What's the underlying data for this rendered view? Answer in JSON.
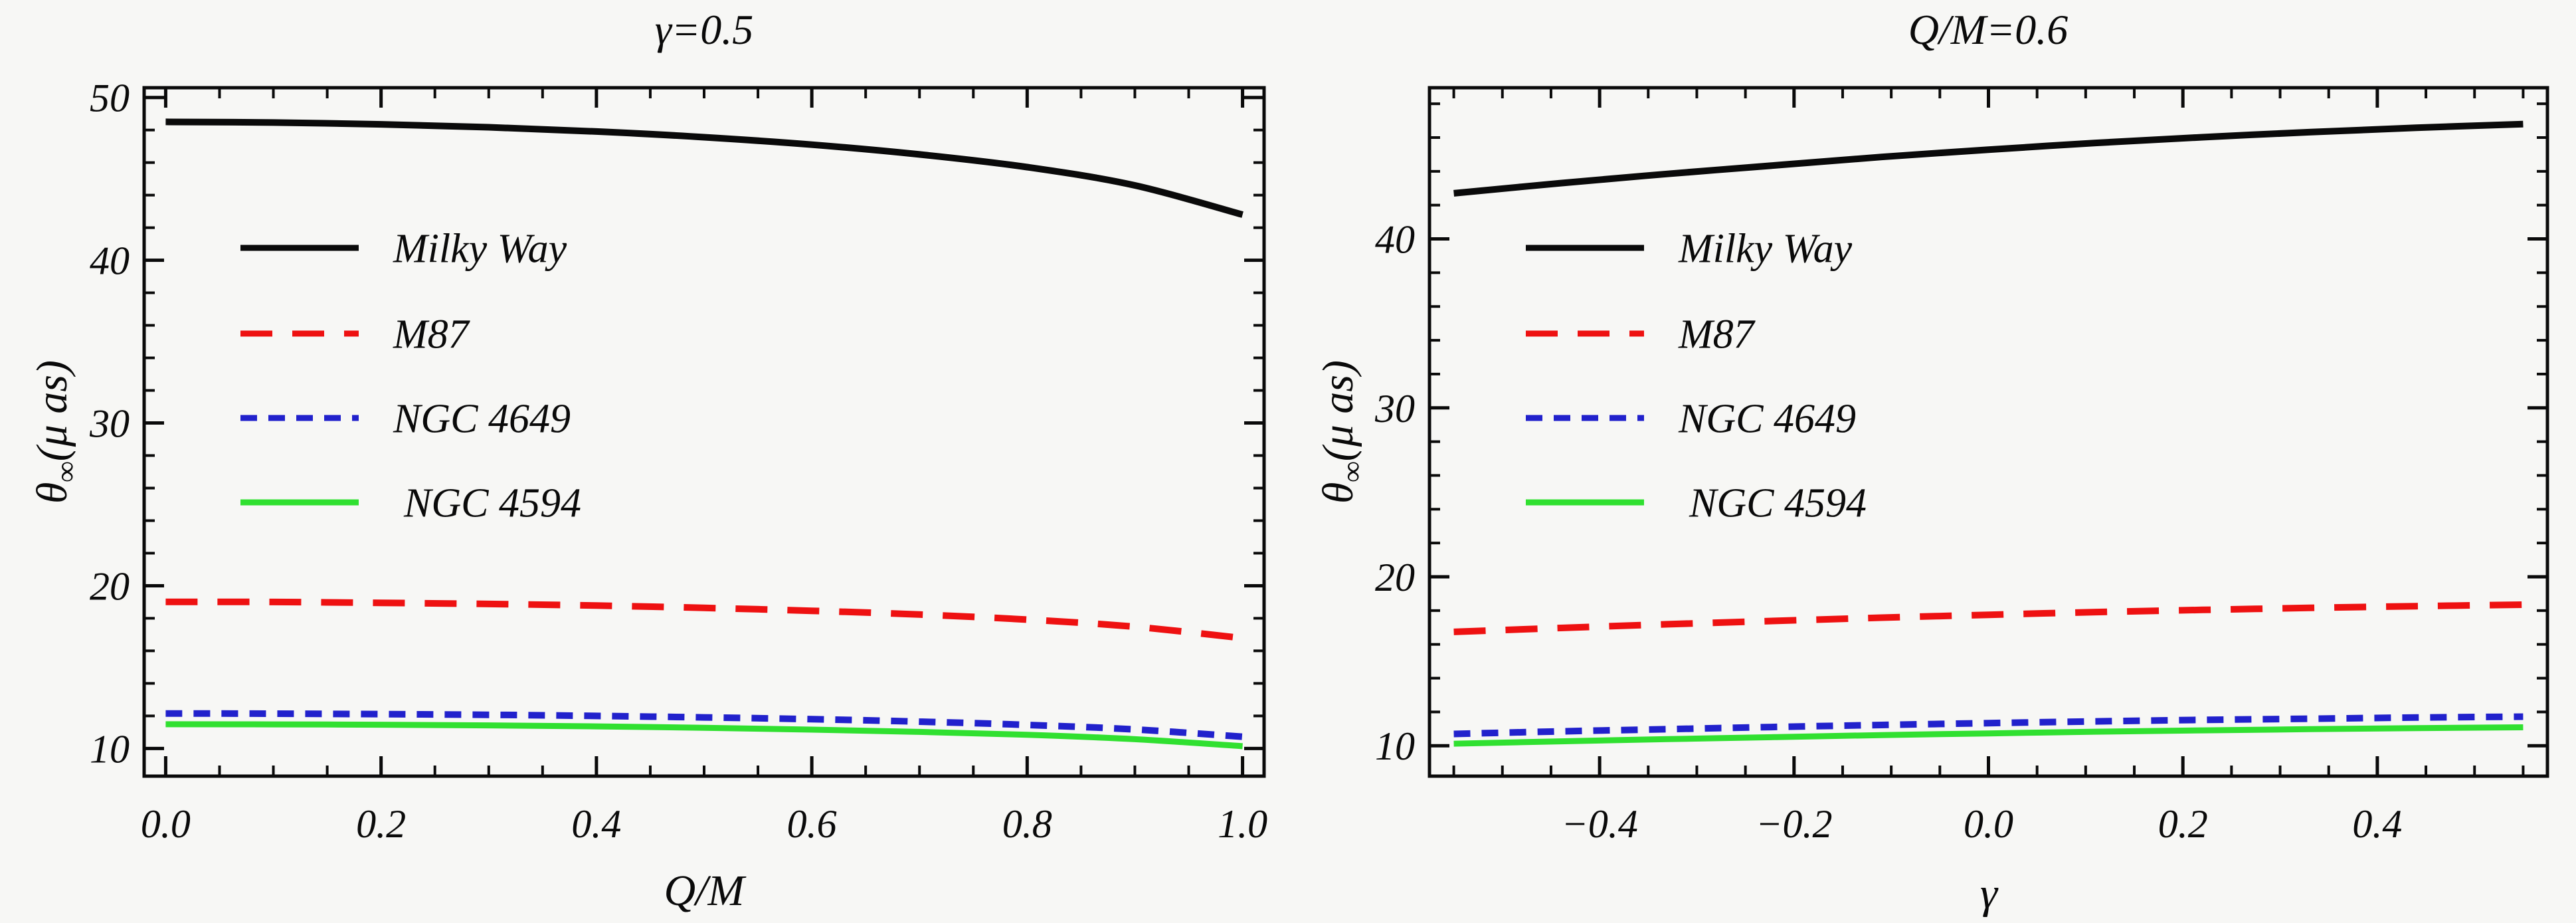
{
  "figure_background": "#f7f7f5",
  "chart_data": [
    {
      "type": "line",
      "position": "left",
      "title": "γ=0.5",
      "xlabel": "Q/M",
      "ylabel": {
        "symbol": "θ",
        "subscript": "∞",
        "unit": "(μ as)",
        "full": "θ∞(μ as)"
      },
      "xlim": [
        -0.02,
        1.02
      ],
      "ylim": [
        8.3,
        50.6
      ],
      "grid": false,
      "legend_position": "upper-left-inside",
      "x_ticks": {
        "major": [
          0.0,
          0.2,
          0.4,
          0.6,
          0.8,
          1.0
        ],
        "labels": [
          "0.0",
          "0.2",
          "0.4",
          "0.6",
          "0.8",
          "1.0"
        ],
        "minor_step": 0.05,
        "minor_range": [
          0.0,
          1.0
        ]
      },
      "y_ticks": {
        "major": [
          10,
          20,
          30,
          40,
          50
        ],
        "labels": [
          "10",
          "20",
          "30",
          "40",
          "50"
        ],
        "minor_step": 2,
        "minor_range": [
          10,
          50
        ]
      },
      "x": [
        0,
        0.1,
        0.2,
        0.3,
        0.4,
        0.5,
        0.6,
        0.7,
        0.8,
        0.9,
        1.0
      ],
      "series": [
        {
          "name": "Milky Way",
          "color": "#0a0a0a",
          "dash": "solid",
          "width": 10,
          "values": [
            48.5,
            48.46,
            48.35,
            48.17,
            47.91,
            47.56,
            47.1,
            46.5,
            45.72,
            44.6,
            42.8
          ]
        },
        {
          "name": "M87",
          "color": "#ee1111",
          "dash": "long-dash",
          "width": 10,
          "values": [
            19.01,
            19.0,
            18.95,
            18.88,
            18.78,
            18.64,
            18.46,
            18.23,
            17.92,
            17.48,
            16.78
          ]
        },
        {
          "name": "NGC 4649",
          "color": "#2121cc",
          "dash": "short-dash",
          "width": 10,
          "values": [
            12.15,
            12.14,
            12.11,
            12.07,
            12.0,
            11.91,
            11.8,
            11.65,
            11.45,
            11.17,
            10.72
          ]
        },
        {
          "name": "NGC 4594",
          "color": "#30e030",
          "dash": "solid",
          "width": 9,
          "values": [
            11.49,
            11.48,
            11.46,
            11.42,
            11.36,
            11.27,
            11.16,
            11.02,
            10.84,
            10.57,
            10.14
          ]
        }
      ]
    },
    {
      "type": "line",
      "position": "right",
      "title": "Q/M=0.6",
      "xlabel": "γ",
      "ylabel": {
        "symbol": "θ",
        "subscript": "∞",
        "unit": "(μ as)",
        "full": "θ∞(μ as)"
      },
      "xlim": [
        -0.575,
        0.575
      ],
      "ylim": [
        8.2,
        48.95
      ],
      "grid": false,
      "legend_position": "upper-left-inside",
      "x_ticks": {
        "major": [
          -0.4,
          -0.2,
          0.0,
          0.2,
          0.4
        ],
        "labels": [
          "−0.4",
          "−0.2",
          "0.0",
          "0.2",
          "0.4"
        ],
        "minor_step": 0.05,
        "minor_range": [
          -0.55,
          0.55
        ]
      },
      "y_ticks": {
        "major": [
          10,
          20,
          30,
          40
        ],
        "labels": [
          "10",
          "20",
          "30",
          "40"
        ],
        "minor_step": 2,
        "minor_range": [
          10,
          48
        ]
      },
      "x": [
        -0.55,
        -0.44,
        -0.33,
        -0.22,
        -0.11,
        0,
        0.11,
        0.22,
        0.33,
        0.44,
        0.55
      ],
      "series": [
        {
          "name": "Milky Way",
          "color": "#0a0a0a",
          "dash": "solid",
          "width": 10,
          "values": [
            42.7,
            43.3,
            43.85,
            44.35,
            44.85,
            45.28,
            45.68,
            46.02,
            46.32,
            46.58,
            46.8
          ]
        },
        {
          "name": "M87",
          "color": "#ee1111",
          "dash": "long-dash",
          "width": 10,
          "values": [
            16.74,
            16.97,
            17.19,
            17.39,
            17.58,
            17.75,
            17.91,
            18.04,
            18.16,
            18.26,
            18.35
          ]
        },
        {
          "name": "NGC 4649",
          "color": "#2121cc",
          "dash": "short-dash",
          "width": 10,
          "values": [
            10.7,
            10.85,
            10.98,
            11.11,
            11.23,
            11.34,
            11.44,
            11.53,
            11.6,
            11.67,
            11.72
          ]
        },
        {
          "name": "NGC 4594",
          "color": "#30e030",
          "dash": "solid",
          "width": 9,
          "values": [
            10.12,
            10.26,
            10.39,
            10.51,
            10.63,
            10.73,
            10.83,
            10.91,
            10.98,
            11.04,
            11.09
          ]
        }
      ]
    }
  ]
}
